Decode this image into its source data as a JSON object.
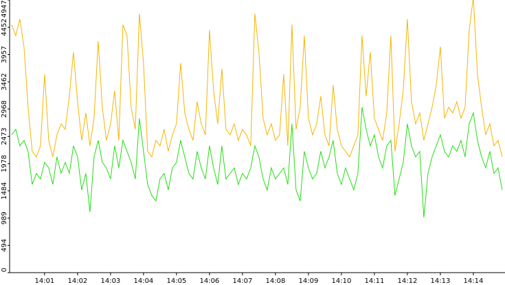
{
  "chart_data": {
    "type": "line",
    "x": [
      0,
      0.125,
      0.25,
      0.375,
      0.5,
      0.625,
      0.75,
      0.875,
      1,
      1.125,
      1.25,
      1.375,
      1.5,
      1.625,
      1.75,
      1.875,
      2,
      2.125,
      2.25,
      2.375,
      2.5,
      2.625,
      2.75,
      2.875,
      3,
      3.125,
      3.25,
      3.375,
      3.5,
      3.625,
      3.75,
      3.875,
      4,
      4.125,
      4.25,
      4.375,
      4.5,
      4.625,
      4.75,
      4.875,
      5,
      5.125,
      5.25,
      5.375,
      5.5,
      5.625,
      5.75,
      5.875,
      6,
      6.125,
      6.25,
      6.375,
      6.5,
      6.625,
      6.75,
      6.875,
      7,
      7.125,
      7.25,
      7.375,
      7.5,
      7.625,
      7.75,
      7.875,
      8,
      8.125,
      8.25,
      8.375,
      8.5,
      8.625,
      8.75,
      8.875,
      9,
      9.125,
      9.25,
      9.375,
      9.5,
      9.625,
      9.75,
      9.875,
      10,
      10.125,
      10.25,
      10.375,
      10.5,
      10.625,
      10.75,
      10.875,
      11,
      11.125,
      11.25,
      11.375,
      11.5,
      11.625,
      11.75,
      11.875,
      12,
      12.125,
      12.25,
      12.375,
      12.5,
      12.625,
      12.75,
      12.875,
      13,
      13.125,
      13.25,
      13.375,
      13.5,
      13.625,
      13.75,
      13.875,
      14,
      14.125,
      14.25,
      14.375,
      14.5,
      14.625,
      14.75,
      14.875
    ],
    "series": [
      {
        "color": "#f5b400",
        "values": [
          4500,
          4300,
          4600,
          4100,
          3000,
          2200,
          2100,
          2300,
          3600,
          2400,
          2100,
          2500,
          2700,
          2600,
          3200,
          4000,
          3100,
          2400,
          2900,
          2300,
          2800,
          4200,
          3000,
          2400,
          2700,
          3300,
          2400,
          4500,
          4300,
          3000,
          2600,
          4700,
          3800,
          2200,
          2100,
          2400,
          2300,
          2600,
          2200,
          2500,
          2700,
          3800,
          2900,
          2600,
          2400,
          3100,
          2700,
          2500,
          4400,
          3300,
          2700,
          3700,
          2600,
          2500,
          2700,
          2400,
          2600,
          2500,
          2300,
          4700,
          4000,
          2800,
          2500,
          2700,
          2400,
          2500,
          3600,
          2300,
          4500,
          2600,
          3000,
          4300,
          2800,
          2500,
          2700,
          3200,
          2500,
          2300,
          3400,
          2600,
          2300,
          2200,
          2100,
          2300,
          2500,
          4300,
          3200,
          4000,
          2800,
          2600,
          2400,
          2900,
          4300,
          2200,
          2700,
          3300,
          4600,
          3100,
          2700,
          2900,
          2400,
          2700,
          3000,
          3400,
          4100,
          2800,
          3000,
          2900,
          3100,
          2800,
          3000,
          4400,
          5000,
          3600,
          3000,
          2500,
          2700,
          2300,
          2400,
          2100
        ]
      },
      {
        "color": "#22dd11",
        "values": [
          2500,
          2600,
          2300,
          2400,
          2200,
          1600,
          1800,
          1700,
          2000,
          1900,
          1600,
          2100,
          1800,
          2000,
          1800,
          2300,
          2100,
          1500,
          1800,
          1100,
          2100,
          2400,
          2000,
          1900,
          1700,
          2300,
          1900,
          2400,
          2200,
          2000,
          1700,
          2800,
          2200,
          1600,
          1400,
          1300,
          1700,
          1800,
          1500,
          1900,
          2000,
          2400,
          2100,
          1800,
          1700,
          2200,
          1900,
          1700,
          2300,
          1900,
          1600,
          2300,
          1700,
          1800,
          1900,
          1600,
          1800,
          1700,
          1900,
          2300,
          2100,
          1700,
          1500,
          1900,
          1700,
          1800,
          1900,
          1600,
          2700,
          1500,
          1300,
          2200,
          1900,
          1700,
          1800,
          2200,
          1900,
          2100,
          2400,
          1800,
          1600,
          1900,
          1700,
          1500,
          1800,
          3000,
          2600,
          2300,
          2500,
          2100,
          1900,
          2300,
          2400,
          1400,
          1700,
          2000,
          2700,
          2300,
          2100,
          2200,
          1000,
          1800,
          2100,
          2300,
          2500,
          2200,
          2100,
          2300,
          2200,
          2400,
          2100,
          2700,
          2900,
          2400,
          2100,
          1900,
          2200,
          1800,
          1900,
          1500
        ]
      }
    ],
    "xlim": [
      -0.06,
      14.96
    ],
    "xticks": [
      {
        "value": 1,
        "label": "14:01"
      },
      {
        "value": 2,
        "label": "14:02"
      },
      {
        "value": 3,
        "label": "14:03"
      },
      {
        "value": 4,
        "label": "14:04"
      },
      {
        "value": 5,
        "label": "14:05"
      },
      {
        "value": 6,
        "label": "14:06"
      },
      {
        "value": 7,
        "label": "14:07"
      },
      {
        "value": 8,
        "label": "14:08"
      },
      {
        "value": 9,
        "label": "14:09"
      },
      {
        "value": 10,
        "label": "14:10"
      },
      {
        "value": 11,
        "label": "14:11"
      },
      {
        "value": 12,
        "label": "14:12"
      },
      {
        "value": 13,
        "label": "14:13"
      },
      {
        "value": 14,
        "label": "14:14"
      }
    ],
    "ylim": [
      0,
      4947
    ],
    "yticks": [
      0,
      494,
      989,
      1484,
      1978,
      2473,
      2968,
      3462,
      3957,
      4452,
      4947
    ]
  }
}
